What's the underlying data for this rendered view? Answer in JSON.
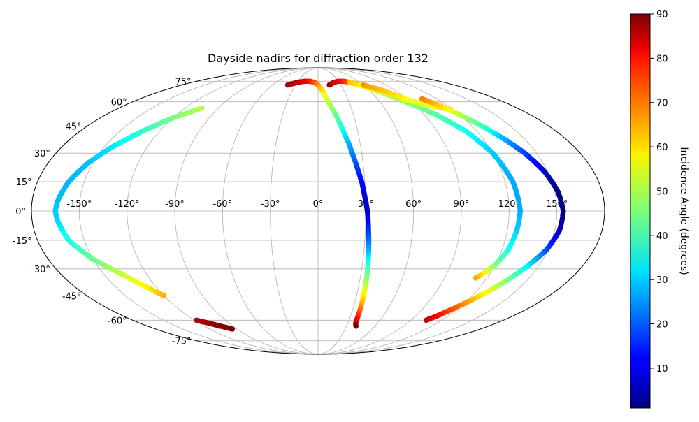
{
  "chart_data": {
    "type": "scatter",
    "projection": "mollweide",
    "title": "Dayside nadirs for diffraction order 132",
    "xlabel": "",
    "ylabel": "",
    "grid": true,
    "x_ticks": [
      "-150°",
      "-120°",
      "-90°",
      "-60°",
      "-30°",
      "0°",
      "30°",
      "60°",
      "90°",
      "120°",
      "150°"
    ],
    "x_tick_values": [
      -150,
      -120,
      -90,
      -60,
      -30,
      0,
      30,
      60,
      90,
      120,
      150
    ],
    "y_ticks": [
      "-75°",
      "-60°",
      "-45°",
      "-30°",
      "-15°",
      "0°",
      "15°",
      "30°",
      "45°",
      "60°",
      "75°"
    ],
    "y_tick_values": [
      -75,
      -60,
      -45,
      -30,
      -15,
      0,
      15,
      30,
      45,
      60,
      75
    ],
    "xlim": [
      -180,
      180
    ],
    "ylim": [
      -90,
      90
    ],
    "colorbar": {
      "label": "Incidence Angle (degrees)",
      "colormap": "jet",
      "range": [
        1,
        90
      ],
      "ticks": [
        "10",
        "20",
        "30",
        "40",
        "50",
        "60",
        "70",
        "80",
        "90"
      ],
      "tick_values": [
        10,
        20,
        30,
        40,
        50,
        60,
        70,
        80,
        90
      ]
    },
    "tracks": [
      {
        "points": [
          [
            -120,
            -45,
            64
          ],
          [
            -127,
            -40,
            58
          ],
          [
            -137,
            -33,
            52
          ],
          [
            -150,
            -25,
            44
          ],
          [
            -160,
            -15,
            37
          ],
          [
            -164,
            -5,
            31
          ],
          [
            -165,
            0,
            30
          ],
          [
            -164,
            5,
            29
          ],
          [
            -160,
            15,
            28
          ],
          [
            -153,
            25,
            29
          ],
          [
            -145,
            33,
            32
          ],
          [
            -133,
            42,
            38
          ],
          [
            -120,
            50,
            45
          ],
          [
            -105,
            56,
            50
          ]
        ]
      },
      {
        "points": [
          [
            -118,
            -60,
            86
          ],
          [
            -110,
            -62,
            88
          ],
          [
            -103,
            -64,
            89
          ],
          [
            -95,
            -66,
            90
          ]
        ]
      },
      {
        "points": [
          [
            -40,
            72,
            87
          ],
          [
            -30,
            74,
            85
          ],
          [
            -20,
            75,
            82
          ],
          [
            -12,
            75,
            78
          ],
          [
            -5,
            74,
            72
          ],
          [
            0,
            72,
            67
          ],
          [
            5,
            68,
            60
          ],
          [
            10,
            60,
            52
          ],
          [
            15,
            52,
            44
          ],
          [
            18,
            45,
            38
          ],
          [
            22,
            35,
            28
          ],
          [
            25,
            25,
            20
          ],
          [
            28,
            15,
            12
          ],
          [
            30,
            5,
            8
          ],
          [
            31,
            0,
            7
          ],
          [
            32,
            -10,
            16
          ],
          [
            33,
            -20,
            27
          ],
          [
            34,
            -30,
            40
          ],
          [
            35,
            -40,
            52
          ],
          [
            36,
            -50,
            64
          ],
          [
            37,
            -58,
            76
          ],
          [
            38,
            -62,
            84
          ],
          [
            40,
            -64,
            90
          ]
        ]
      },
      {
        "points": [
          [
            15,
            72,
            88
          ],
          [
            22,
            74,
            84
          ],
          [
            30,
            75,
            80
          ],
          [
            38,
            75,
            76
          ],
          [
            45,
            74,
            72
          ],
          [
            52,
            73,
            68
          ]
        ]
      },
      {
        "points": [
          [
            45,
            74,
            62
          ],
          [
            55,
            72,
            58
          ],
          [
            70,
            67,
            53
          ],
          [
            85,
            60,
            48
          ],
          [
            100,
            52,
            42
          ],
          [
            112,
            42,
            36
          ],
          [
            120,
            30,
            30
          ],
          [
            125,
            15,
            27
          ],
          [
            127,
            0,
            27
          ],
          [
            126,
            -10,
            30
          ],
          [
            124,
            -20,
            36
          ],
          [
            120,
            -28,
            45
          ],
          [
            116,
            -32,
            55
          ],
          [
            112,
            -35,
            64
          ]
        ]
      },
      {
        "points": [
          [
            60,
            72,
            66
          ],
          [
            75,
            68,
            62
          ],
          [
            88,
            62,
            57
          ],
          [
            100,
            58,
            54
          ],
          [
            112,
            56,
            58
          ],
          [
            118,
            55,
            62
          ]
        ]
      },
      {
        "points": [
          [
            105,
            62,
            68
          ],
          [
            112,
            58,
            62
          ],
          [
            120,
            52,
            52
          ],
          [
            128,
            45,
            40
          ],
          [
            135,
            38,
            28
          ],
          [
            142,
            30,
            18
          ],
          [
            148,
            20,
            8
          ],
          [
            152,
            10,
            2
          ],
          [
            154,
            0,
            1
          ],
          [
            153,
            -10,
            6
          ],
          [
            149,
            -20,
            18
          ],
          [
            143,
            -28,
            32
          ],
          [
            135,
            -37,
            46
          ],
          [
            125,
            -46,
            60
          ],
          [
            117,
            -52,
            70
          ],
          [
            110,
            -57,
            78
          ],
          [
            105,
            -60,
            84
          ]
        ]
      }
    ]
  }
}
